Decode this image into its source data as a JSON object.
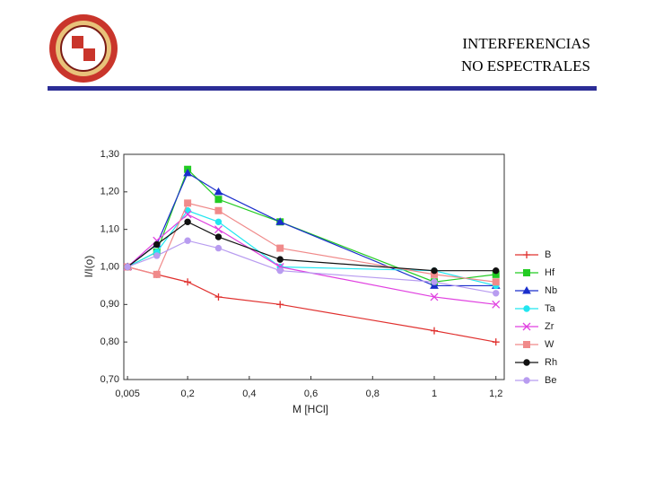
{
  "header": {
    "lines": [
      "INTERFERENCIAS",
      "NO ESPECTRALES"
    ]
  },
  "chart_data": {
    "type": "line",
    "xlabel": "M [HCl]",
    "ylabel": "I/I(o)",
    "x": [
      0.005,
      0.1,
      0.2,
      0.3,
      0.5,
      1,
      1.2
    ],
    "xlim": [
      -0.007,
      1.227
    ],
    "xticks": [
      {
        "value": 0.005,
        "label": "0,005"
      },
      {
        "value": 0.2,
        "label": "0,2"
      },
      {
        "value": 0.4,
        "label": "0,4"
      },
      {
        "value": 0.6,
        "label": "0,6"
      },
      {
        "value": 0.8,
        "label": "0,8"
      },
      1,
      {
        "value": 1.2,
        "label": "1,2"
      }
    ],
    "ylim": [
      0.7,
      1.3
    ],
    "yticks": [
      {
        "value": 0.7,
        "label": "0,70"
      },
      {
        "value": 0.8,
        "label": "0,80"
      },
      {
        "value": 0.9,
        "label": "0,90"
      },
      {
        "value": 1.0,
        "label": "1,00"
      },
      {
        "value": 1.1,
        "label": "1,10"
      },
      {
        "value": 1.2,
        "label": "1,20"
      },
      {
        "value": 1.3,
        "label": "1,30"
      }
    ],
    "legend": "right",
    "series": [
      {
        "name": "B",
        "color": "#e0302e",
        "marker": "plus",
        "values": [
          1.0,
          0.98,
          0.96,
          0.92,
          0.9,
          0.83,
          0.8
        ]
      },
      {
        "name": "Hf",
        "color": "#22cc22",
        "marker": "square",
        "values": [
          1.0,
          1.04,
          1.26,
          1.18,
          1.12,
          0.96,
          0.98
        ]
      },
      {
        "name": "Nb",
        "color": "#1a2ecc",
        "marker": "triangle",
        "values": [
          1.0,
          1.06,
          1.25,
          1.2,
          1.12,
          0.95,
          0.95
        ]
      },
      {
        "name": "Ta",
        "color": "#22e6f0",
        "marker": "circle",
        "values": [
          1.0,
          1.04,
          1.15,
          1.12,
          1.0,
          0.99,
          0.95
        ]
      },
      {
        "name": "Zr",
        "color": "#e040e0",
        "marker": "cross",
        "values": [
          1.0,
          1.07,
          1.14,
          1.1,
          1.0,
          0.92,
          0.9
        ]
      },
      {
        "name": "W",
        "color": "#f08a8a",
        "marker": "square",
        "values": [
          1.0,
          0.98,
          1.17,
          1.15,
          1.05,
          0.98,
          0.96
        ]
      },
      {
        "name": "Rh",
        "color": "#111111",
        "marker": "circle",
        "values": [
          1.0,
          1.06,
          1.12,
          1.08,
          1.02,
          0.99,
          0.99
        ]
      },
      {
        "name": "Be",
        "color": "#b89cf0",
        "marker": "circle",
        "values": [
          1.0,
          1.03,
          1.07,
          1.05,
          0.99,
          0.96,
          0.93
        ]
      }
    ]
  }
}
